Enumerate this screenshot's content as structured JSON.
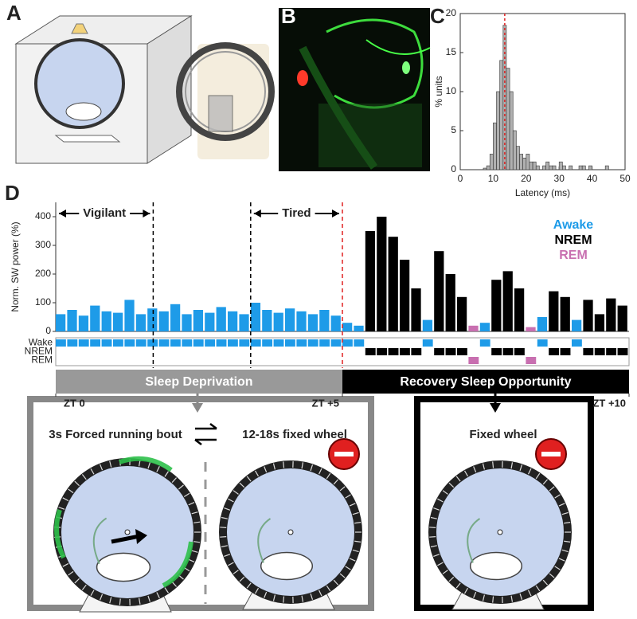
{
  "panel_labels": [
    "A",
    "B",
    "C",
    "D"
  ],
  "chart_data": [
    {
      "type": "histogram",
      "ylabel": "% units",
      "xlabel": "Latency (ms)",
      "bins": [
        0,
        1,
        2,
        3,
        4,
        5,
        6,
        7,
        8,
        9,
        10,
        11,
        12,
        13,
        14,
        15,
        16,
        17,
        18,
        19,
        20,
        21,
        22,
        23,
        24,
        25,
        26,
        27,
        28,
        29,
        30,
        31,
        32,
        33,
        34,
        35,
        36,
        37,
        38,
        39,
        40,
        41,
        42,
        43,
        44,
        45,
        46,
        47,
        48,
        49,
        50
      ],
      "values": [
        0,
        0,
        0,
        0,
        0,
        0,
        0,
        0.2,
        0.5,
        2,
        6,
        10,
        14,
        18.5,
        13,
        10,
        5,
        3,
        2,
        1.5,
        2,
        1,
        1,
        0.5,
        0,
        0.5,
        1,
        0.5,
        0.5,
        0,
        1,
        0.5,
        0,
        0.5,
        0,
        0,
        0.5,
        0.5,
        0,
        0.5,
        0,
        0,
        0,
        0,
        0.5,
        0,
        0,
        0,
        0,
        0
      ],
      "color": "#b0b0b0",
      "xlim": [
        0,
        50
      ],
      "xticks": [
        0,
        10,
        20,
        30,
        40,
        50
      ],
      "ylim": [
        0,
        20
      ],
      "yticks": [
        0,
        5,
        10,
        15,
        20
      ],
      "reference_line": {
        "value": 13.5,
        "color": "#e02020"
      }
    },
    {
      "type": "bar",
      "ylabel": "Norm. SW power (%)",
      "x": [
        0,
        0.2,
        0.4,
        0.6,
        0.8,
        1,
        1.2,
        1.4,
        1.6,
        1.8,
        2,
        2.2,
        2.4,
        2.6,
        2.8,
        3,
        3.2,
        3.4,
        3.6,
        3.8,
        4,
        4.2,
        4.4,
        4.6,
        4.8,
        5,
        5.2,
        5.4,
        5.6,
        5.8,
        6,
        6.2,
        6.4,
        6.6,
        6.8,
        7,
        7.2,
        7.4,
        7.6,
        7.8,
        8,
        8.2,
        8.4,
        8.6,
        8.8,
        9,
        9.2,
        9.4,
        9.6,
        9.8
      ],
      "series": [
        {
          "name": "Awake",
          "color": "#1e9be8",
          "values": [
            60,
            75,
            55,
            90,
            70,
            65,
            110,
            60,
            80,
            70,
            95,
            60,
            75,
            65,
            85,
            70,
            60,
            100,
            75,
            65,
            80,
            70,
            60,
            75,
            55,
            30,
            20,
            null,
            null,
            null,
            null,
            null,
            40,
            null,
            null,
            null,
            null,
            30,
            null,
            null,
            null,
            null,
            50,
            null,
            null,
            40,
            null,
            null,
            null,
            null
          ]
        },
        {
          "name": "NREM",
          "color": "#000000",
          "values": [
            null,
            null,
            null,
            null,
            null,
            null,
            null,
            null,
            null,
            null,
            null,
            null,
            null,
            null,
            null,
            null,
            null,
            null,
            null,
            null,
            null,
            null,
            null,
            null,
            null,
            null,
            null,
            350,
            400,
            330,
            250,
            150,
            null,
            280,
            200,
            120,
            null,
            null,
            180,
            210,
            150,
            null,
            null,
            140,
            120,
            null,
            110,
            60,
            115,
            90
          ]
        },
        {
          "name": "REM",
          "color": "#c86fb0",
          "values": [
            null,
            null,
            null,
            null,
            null,
            null,
            null,
            null,
            null,
            null,
            null,
            null,
            null,
            null,
            null,
            null,
            null,
            null,
            null,
            null,
            null,
            null,
            null,
            null,
            null,
            null,
            null,
            null,
            null,
            null,
            null,
            null,
            null,
            null,
            null,
            null,
            20,
            null,
            null,
            null,
            null,
            15,
            null,
            null,
            null,
            null,
            null,
            null,
            null,
            null
          ]
        }
      ],
      "xlim": [
        0,
        10
      ],
      "xticks": [
        {
          "value": 0,
          "label": "ZT 0"
        },
        {
          "value": 5,
          "label": "ZT +5"
        },
        {
          "value": 10,
          "label": "ZT +10"
        }
      ],
      "ylim": [
        0,
        450
      ],
      "yticks": [
        0,
        100,
        200,
        300,
        400
      ],
      "hypnogram_rows": [
        "Wake",
        "NREM",
        "REM"
      ],
      "markers": [
        {
          "value": 1.7,
          "color": "#000000"
        },
        {
          "value": 3.4,
          "color": "#000000"
        },
        {
          "value": 5,
          "color": "#e02020"
        }
      ],
      "annotations": [
        {
          "text": "Vigilant",
          "start": 0,
          "end": 1.7
        },
        {
          "text": "Tired",
          "start": 3.4,
          "end": 5
        }
      ],
      "phases": [
        {
          "label": "Sleep Deprivation",
          "start": 0,
          "end": 5,
          "color": "#999999"
        },
        {
          "label": "Recovery Sleep Opportunity",
          "start": 5,
          "end": 10,
          "color": "#000000"
        }
      ]
    }
  ],
  "conditions": {
    "deprivation_left": "3s Forced running bout",
    "deprivation_right": "12-18s fixed wheel",
    "recovery": "Fixed wheel"
  }
}
